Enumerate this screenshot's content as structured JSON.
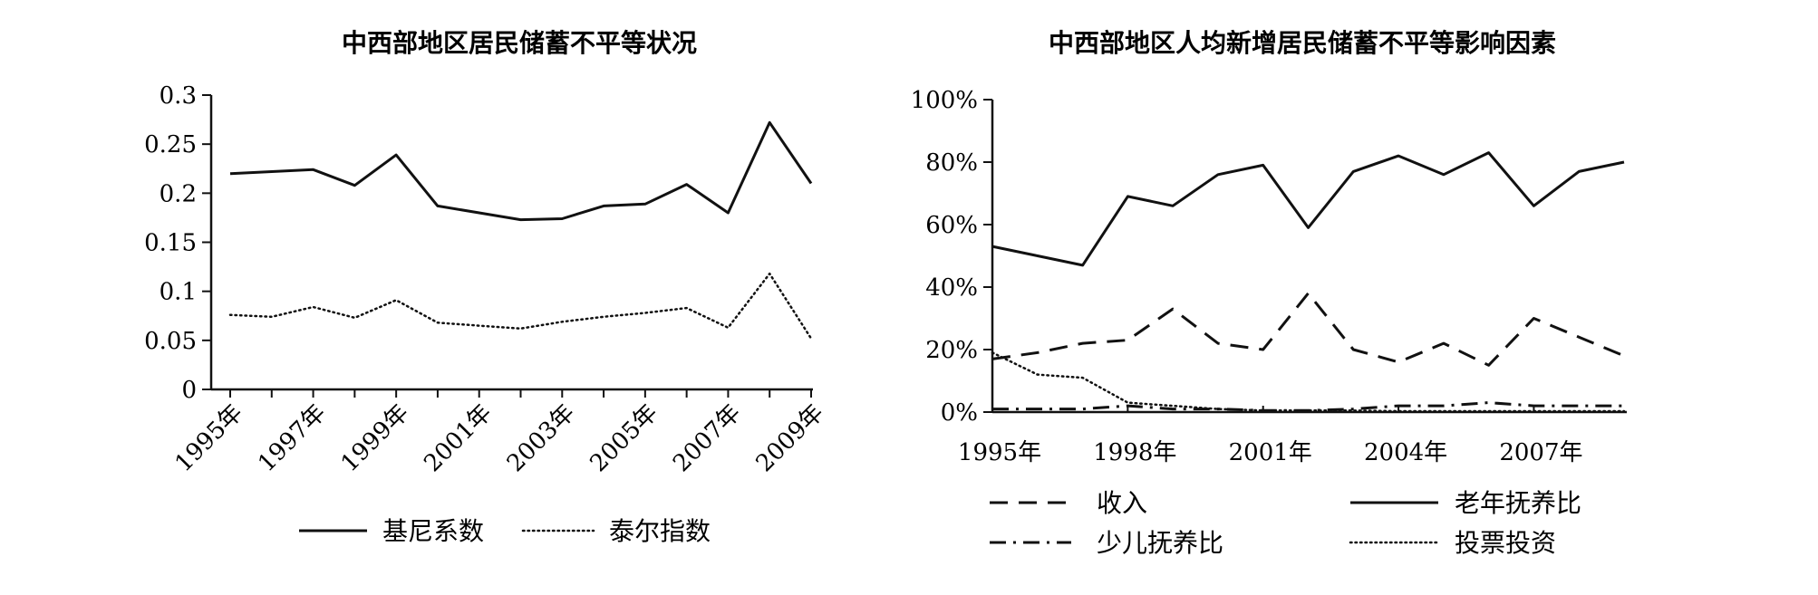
{
  "chart_data": [
    {
      "type": "line",
      "title": "中西部地区居民储蓄不平等状况",
      "x": [
        "1995年",
        "1996年",
        "1997年",
        "1998年",
        "1999年",
        "2000年",
        "2001年",
        "2002年",
        "2003年",
        "2004年",
        "2005年",
        "2006年",
        "2007年",
        "2008年",
        "2009年"
      ],
      "x_tick_labels": [
        "1995年",
        "1997年",
        "1999年",
        "2001年",
        "2003年",
        "2005年",
        "2007年",
        "2009年"
      ],
      "ylim": [
        0,
        0.3
      ],
      "y_ticks": [
        "0",
        "0.05",
        "0.1",
        "0.15",
        "0.2",
        "0.25",
        "0.3"
      ],
      "legend_position": "bottom",
      "grid": false,
      "series": [
        {
          "name": "基尼系数",
          "style": "solid",
          "values": [
            0.22,
            0.222,
            0.224,
            0.208,
            0.239,
            0.187,
            0.18,
            0.173,
            0.174,
            0.187,
            0.189,
            0.209,
            0.18,
            0.272,
            0.21
          ]
        },
        {
          "name": "泰尔指数",
          "style": "dotted",
          "values": [
            0.076,
            0.074,
            0.084,
            0.073,
            0.091,
            0.068,
            0.065,
            0.062,
            0.069,
            0.074,
            0.078,
            0.083,
            0.063,
            0.118,
            0.052
          ]
        }
      ]
    },
    {
      "type": "line",
      "title": "中西部地区人均新增居民储蓄不平等影响因素",
      "x": [
        "1995年",
        "1996年",
        "1997年",
        "1998年",
        "1999年",
        "2000年",
        "2001年",
        "2002年",
        "2003年",
        "2004年",
        "2005年",
        "2006年",
        "2007年",
        "2008年",
        "2009年"
      ],
      "x_tick_labels": [
        "1995年",
        "1998年",
        "2001年",
        "2004年",
        "2007年"
      ],
      "ylim": [
        0,
        100
      ],
      "y_ticks": [
        "0%",
        "20%",
        "40%",
        "60%",
        "80%",
        "100%"
      ],
      "legend_position": "bottom",
      "grid": false,
      "series": [
        {
          "name": "收入",
          "style": "dashed",
          "values": [
            17,
            19,
            22,
            23,
            33,
            22,
            20,
            38,
            20,
            16,
            22,
            15,
            30,
            24,
            18
          ]
        },
        {
          "name": "老年抚养比",
          "style": "solid",
          "values": [
            53,
            50,
            47,
            69,
            66,
            76,
            79,
            59,
            77,
            82,
            76,
            83,
            66,
            77,
            80
          ]
        },
        {
          "name": "少儿抚养比",
          "style": "dashdot",
          "values": [
            1,
            1,
            1,
            2,
            1,
            1,
            0.5,
            0.5,
            1,
            2,
            2,
            3,
            2,
            2,
            2
          ]
        },
        {
          "name": "投票投资",
          "style": "dotted",
          "values": [
            19,
            12,
            11,
            3,
            2,
            1,
            0.5,
            0.5,
            0.5,
            0.3,
            0.3,
            0.3,
            0.3,
            0.3,
            0.3
          ]
        }
      ]
    }
  ]
}
